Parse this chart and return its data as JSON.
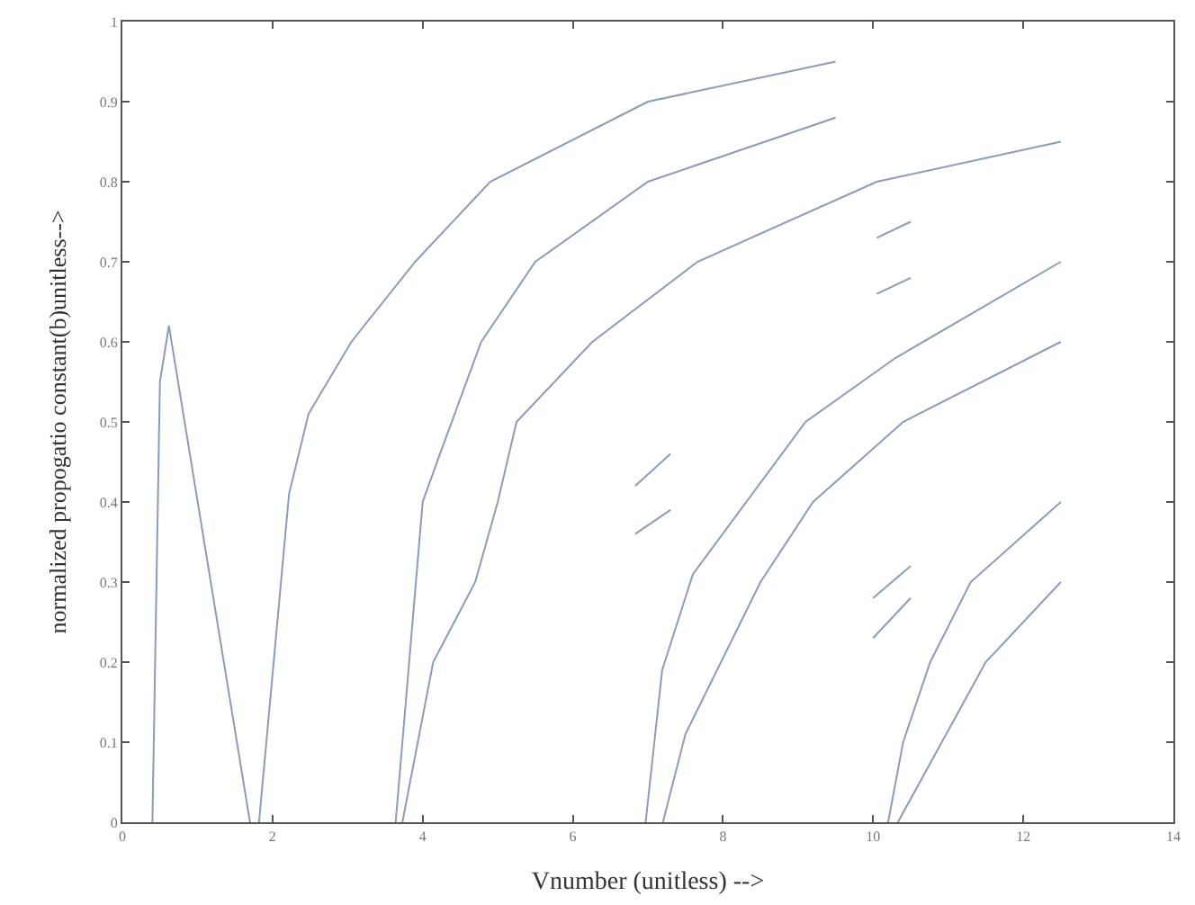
{
  "chart_data": {
    "type": "line",
    "xlabel": "Vnumber (unitless) -->",
    "ylabel": "normalized propogatio constant(b)unitless-->",
    "xlim": [
      0,
      14
    ],
    "xticks": [
      0,
      2,
      4,
      6,
      8,
      10,
      12,
      14
    ],
    "ylim": [
      0,
      1
    ],
    "yticks": [
      0,
      0.1,
      0.2,
      0.3,
      0.4,
      0.5,
      0.6,
      0.7,
      0.8,
      0.9,
      1
    ],
    "marker": "none",
    "line_style": "solid",
    "series": [
      {
        "color": "#8c9cb8",
        "x": [
          0.4,
          0.5,
          0.62,
          1.7
        ],
        "values": [
          0,
          0.55,
          0.62,
          0
        ]
      },
      {
        "color": "#8c9cb8",
        "x": [
          1.82,
          2.22,
          2.48,
          3.05,
          3.9,
          4.9,
          7.0,
          9.5
        ],
        "values": [
          0,
          0.41,
          0.51,
          0.6,
          0.7,
          0.8,
          0.9,
          0.95
        ]
      },
      {
        "color": "#8c9cb8",
        "x": [
          3.64,
          4.0,
          4.23,
          4.78,
          5.5,
          7.0,
          9.5
        ],
        "values": [
          0,
          0.4,
          0.46,
          0.6,
          0.7,
          0.8,
          0.88
        ]
      },
      {
        "color": "#8c9cb8",
        "x": [
          3.73,
          4.14,
          4.7,
          5.0,
          5.25,
          6.26,
          7.66,
          10.05,
          12.5
        ],
        "values": [
          0,
          0.2,
          0.3,
          0.4,
          0.5,
          0.6,
          0.7,
          0.8,
          0.85
        ]
      },
      {
        "color": "#8c9cb8",
        "x": [
          6.97,
          7.19,
          7.6,
          9.1,
          10.3,
          12.5
        ],
        "values": [
          0,
          0.19,
          0.31,
          0.5,
          0.58,
          0.7
        ]
      },
      {
        "color": "#8c9cb8",
        "x": [
          7.2,
          7.5,
          8.5,
          9.2,
          10.4,
          12.5
        ],
        "values": [
          0,
          0.11,
          0.3,
          0.4,
          0.5,
          0.6
        ]
      },
      {
        "color": "#8c9cb8",
        "x": [
          10.2,
          10.4,
          10.76,
          11.3,
          12.5
        ],
        "values": [
          0,
          0.1,
          0.2,
          0.3,
          0.4
        ]
      },
      {
        "color": "#8c9cb8",
        "x": [
          10.33,
          11.5,
          12.5
        ],
        "values": [
          0,
          0.2,
          0.3
        ]
      },
      {
        "color": "#8c9cb8",
        "x": [
          6.83,
          7.3
        ],
        "values": [
          0.42,
          0.46
        ]
      },
      {
        "color": "#8c9cb8",
        "x": [
          6.83,
          7.3
        ],
        "values": [
          0.36,
          0.39
        ]
      },
      {
        "color": "#8c9cb8",
        "x": [
          10.0,
          10.5
        ],
        "values": [
          0.28,
          0.32
        ]
      },
      {
        "color": "#8c9cb8",
        "x": [
          10.0,
          10.5
        ],
        "values": [
          0.23,
          0.28
        ]
      },
      {
        "color": "#8c9cb8",
        "x": [
          10.05,
          10.5
        ],
        "values": [
          0.73,
          0.75
        ]
      },
      {
        "color": "#8c9cb8",
        "x": [
          10.05,
          10.5
        ],
        "values": [
          0.66,
          0.68
        ]
      }
    ]
  }
}
